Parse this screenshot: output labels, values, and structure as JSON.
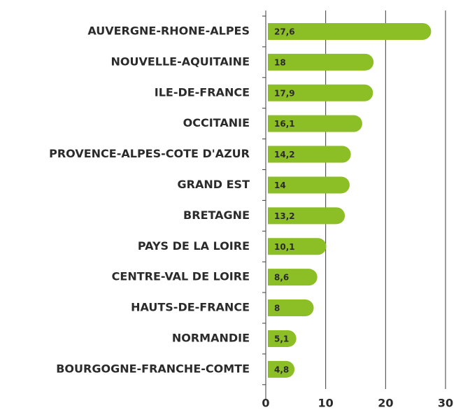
{
  "chart_data": {
    "type": "bar",
    "orientation": "horizontal",
    "categories": [
      "AUVERGNE-RHONE-ALPES",
      "NOUVELLE-AQUITAINE",
      "ILE-DE-FRANCE",
      "OCCITANIE",
      "PROVENCE-ALPES-COTE D'AZUR",
      "GRAND EST",
      "BRETAGNE",
      "PAYS DE LA LOIRE",
      "CENTRE-VAL DE LOIRE",
      "HAUTS-DE-FRANCE",
      "NORMANDIE",
      "BOURGOGNE-FRANCHE-COMTE"
    ],
    "values": [
      27.6,
      18,
      17.9,
      16.1,
      14.2,
      14,
      13.2,
      10.1,
      8.6,
      8,
      5.1,
      4.8
    ],
    "value_labels": [
      "27,6",
      "18",
      "17,9",
      "16,1",
      "14,2",
      "14",
      "13,2",
      "10,1",
      "8,6",
      "8",
      "5,1",
      "4,8"
    ],
    "color": "#8cbf26",
    "xlim": [
      0,
      30
    ],
    "xticks": [
      0,
      10,
      20,
      30
    ],
    "grid": true
  }
}
